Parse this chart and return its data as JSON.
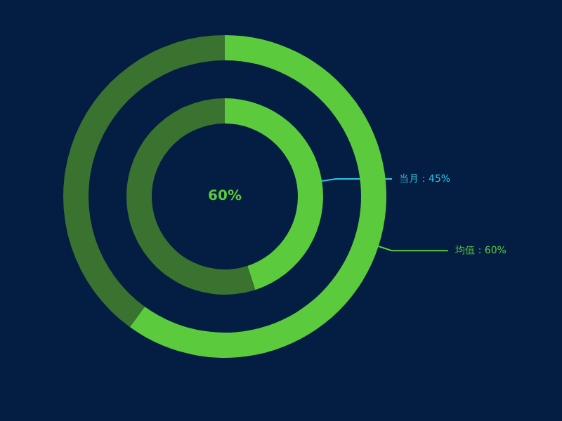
{
  "chart_data": {
    "type": "donut",
    "categories": [
      null,
      null
    ],
    "annotations": [
      "60%"
    ],
    "series": [
      {
        "name": "均值",
        "values": [
          60,
          40
        ],
        "colors": [
          "#5bcb3d",
          "#3a7230"
        ],
        "value_labels": [
          "：60%",
          null
        ]
      },
      {
        "name": "当月",
        "values": [
          45,
          55
        ],
        "colors": [
          "#5bcb3d",
          "#3a7230"
        ],
        "value_labels": [
          "：45%",
          null
        ]
      }
    ]
  }
}
